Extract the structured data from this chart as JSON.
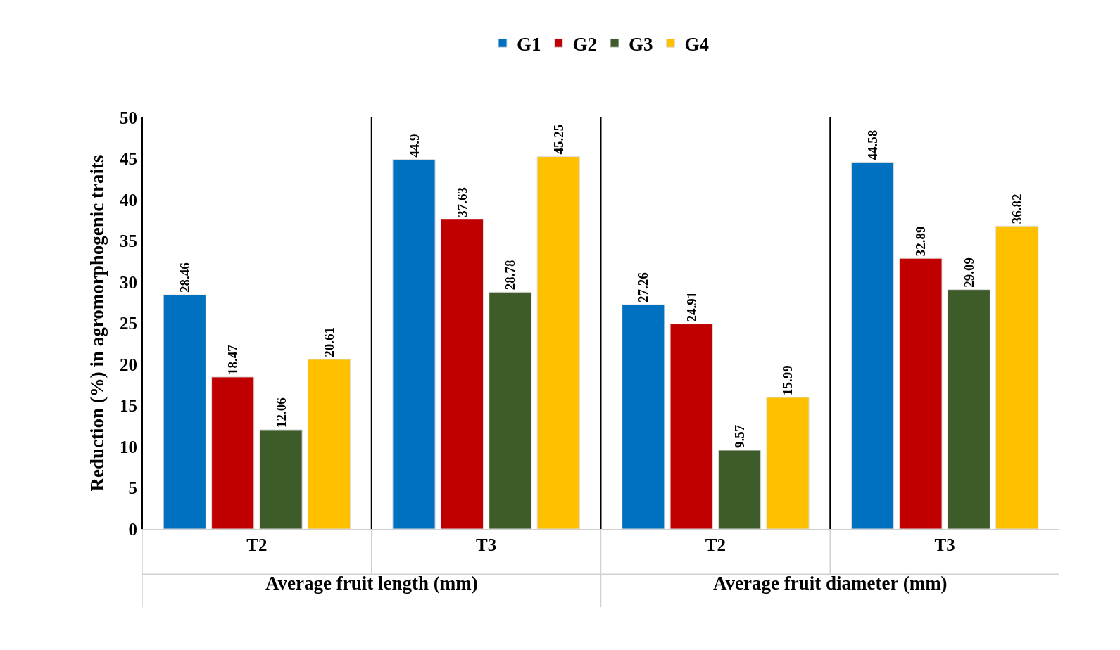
{
  "chart_data": {
    "type": "bar",
    "ylabel": "Reduction (%) in agromorphogenic traits",
    "categories": [
      "T2",
      "T3",
      "T2",
      "T3"
    ],
    "annotations": [
      "Average fruit length (mm)",
      "Average fruit diameter (mm)"
    ],
    "series": [
      {
        "name": "G1",
        "color": "#0070c0",
        "values": [
          28.46,
          44.9,
          27.26,
          44.58
        ]
      },
      {
        "name": "G2",
        "color": "#c00000",
        "values": [
          18.47,
          37.63,
          24.91,
          32.89
        ]
      },
      {
        "name": "G3",
        "color": "#3d5c29",
        "values": [
          12.06,
          28.78,
          9.57,
          29.09
        ]
      },
      {
        "name": "G4",
        "color": "#ffc000",
        "values": [
          20.61,
          45.25,
          15.99,
          36.82
        ]
      }
    ],
    "ylim": [
      0,
      50
    ],
    "yticks": [
      0,
      5,
      10,
      15,
      20,
      25,
      30,
      35,
      40,
      45,
      50
    ],
    "data_labels": true,
    "legend": "top"
  }
}
